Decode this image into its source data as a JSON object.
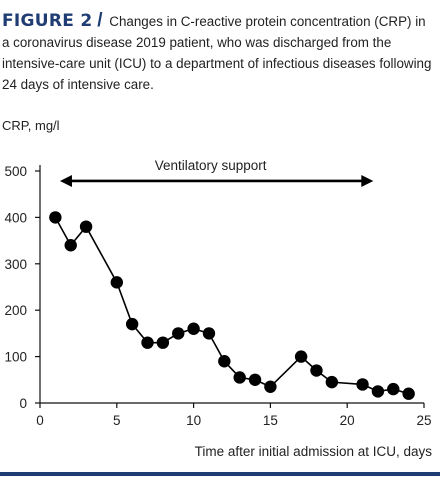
{
  "figure": {
    "label": "FIGURE 2",
    "slash": "/",
    "caption": "Changes in C-reactive protein concentration (CRP) in a coronavirus disease 2019 patient, who was discharged from the intensive-care unit (ICU) to a department of infectious diseases following 24 days of intensive care."
  },
  "colors": {
    "accent": "#1f3c73",
    "marker": "#000000"
  },
  "chart_data": {
    "type": "line",
    "ylabel": "CRP, mg/l",
    "xlabel": "Time after initial admission at ICU, days",
    "xlim": [
      0,
      25
    ],
    "ylim": [
      0,
      500
    ],
    "xticks": [
      0,
      5,
      10,
      15,
      20,
      25
    ],
    "yticks": [
      0,
      100,
      200,
      300,
      400,
      500
    ],
    "grid": false,
    "series": [
      {
        "x": [
          1,
          2,
          3,
          5,
          6,
          7,
          8,
          9,
          10,
          11,
          12,
          13,
          14,
          15,
          17,
          18,
          19,
          21,
          22,
          23,
          24
        ],
        "y": [
          400,
          340,
          380,
          260,
          170,
          130,
          130,
          150,
          160,
          150,
          90,
          55,
          50,
          35,
          100,
          70,
          45,
          40,
          25,
          30,
          20
        ]
      }
    ],
    "annotations": [
      {
        "text": "Ventilatory support",
        "x_start": 1.3,
        "x_end": 21.7,
        "y": 485
      }
    ]
  }
}
